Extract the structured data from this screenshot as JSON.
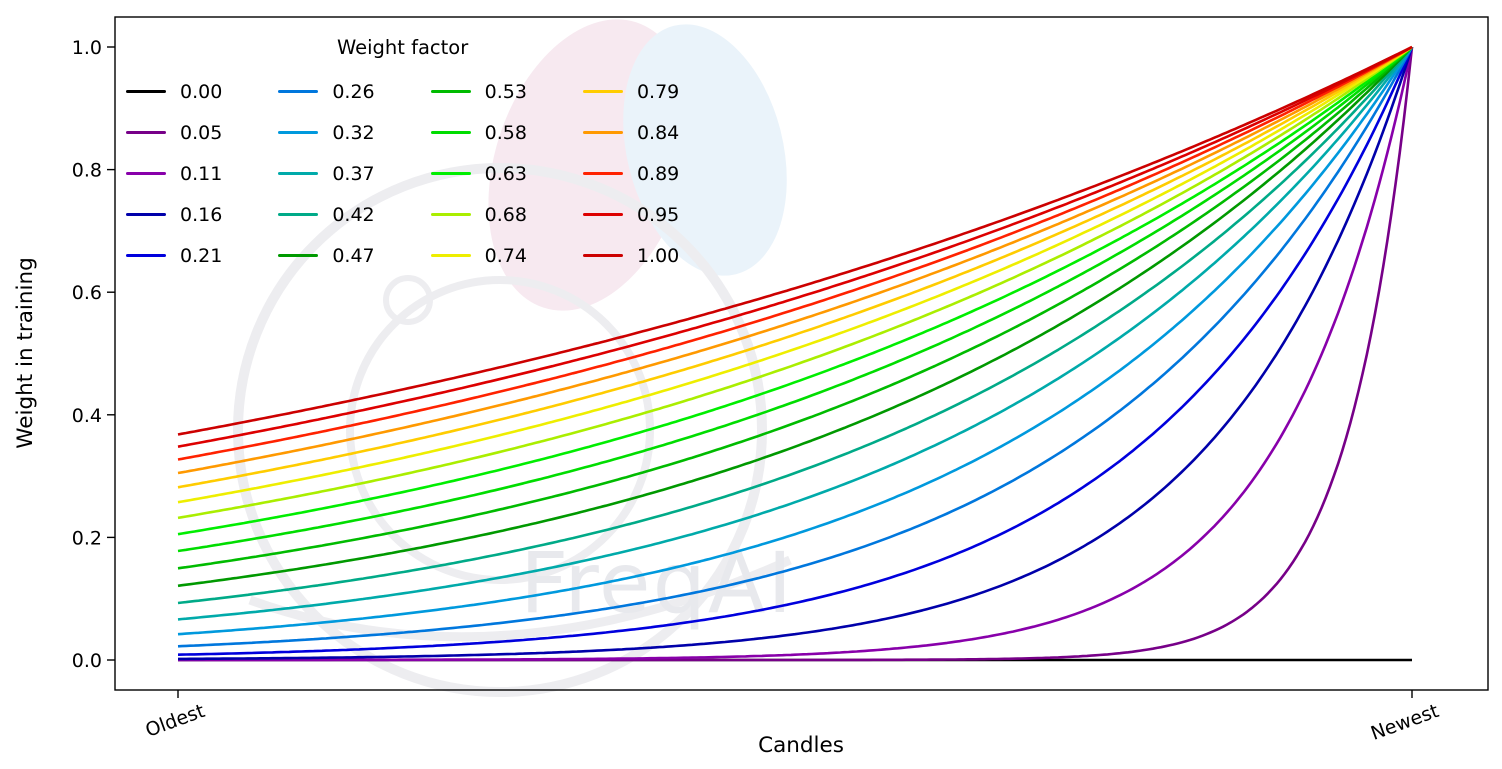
{
  "chart_data": {
    "type": "line",
    "title": "",
    "legend_title": "Weight factor",
    "xlabel": "Candles",
    "ylabel": "Weight in training",
    "x_tick_labels": [
      "Oldest",
      "Newest"
    ],
    "y_ticks": [
      0.0,
      0.2,
      0.4,
      0.6,
      0.8,
      1.0
    ],
    "y_tick_labels": [
      "0.0",
      "0.2",
      "0.4",
      "0.6",
      "0.8",
      "1.0"
    ],
    "ylim": [
      -0.05,
      1.05
    ],
    "x_range": [
      0,
      1
    ],
    "grid": false,
    "legend_position": "upper left",
    "legend_columns": 4,
    "formula": "weight(x) = exp(-(1 - x) / weight_factor) for x in [0,1] (x=0 oldest candle, x=1 newest); weight_factor = 0 gives weight 0 across all candles",
    "watermark_text": "FreqAI",
    "series": [
      {
        "label": "0.00",
        "factor": 0.0,
        "color": "#000000"
      },
      {
        "label": "0.05",
        "factor": 0.0526,
        "color": "#770088"
      },
      {
        "label": "0.11",
        "factor": 0.1053,
        "color": "#8800aa"
      },
      {
        "label": "0.16",
        "factor": 0.1579,
        "color": "#0000aa"
      },
      {
        "label": "0.21",
        "factor": 0.2105,
        "color": "#0000dd"
      },
      {
        "label": "0.26",
        "factor": 0.2632,
        "color": "#0077dd"
      },
      {
        "label": "0.32",
        "factor": 0.3158,
        "color": "#0099dd"
      },
      {
        "label": "0.37",
        "factor": 0.3684,
        "color": "#00aaaa"
      },
      {
        "label": "0.42",
        "factor": 0.4211,
        "color": "#00aa88"
      },
      {
        "label": "0.47",
        "factor": 0.4737,
        "color": "#009900"
      },
      {
        "label": "0.53",
        "factor": 0.5263,
        "color": "#00bb00"
      },
      {
        "label": "0.58",
        "factor": 0.5789,
        "color": "#00dd00"
      },
      {
        "label": "0.63",
        "factor": 0.6316,
        "color": "#00ee00"
      },
      {
        "label": "0.68",
        "factor": 0.6842,
        "color": "#aaee00"
      },
      {
        "label": "0.74",
        "factor": 0.7368,
        "color": "#eeee00"
      },
      {
        "label": "0.79",
        "factor": 0.7895,
        "color": "#ffcc00"
      },
      {
        "label": "0.84",
        "factor": 0.8421,
        "color": "#ff9900"
      },
      {
        "label": "0.89",
        "factor": 0.8947,
        "color": "#ff2200"
      },
      {
        "label": "0.95",
        "factor": 0.9474,
        "color": "#dd0000"
      },
      {
        "label": "1.00",
        "factor": 1.0,
        "color": "#cc0000"
      }
    ]
  }
}
